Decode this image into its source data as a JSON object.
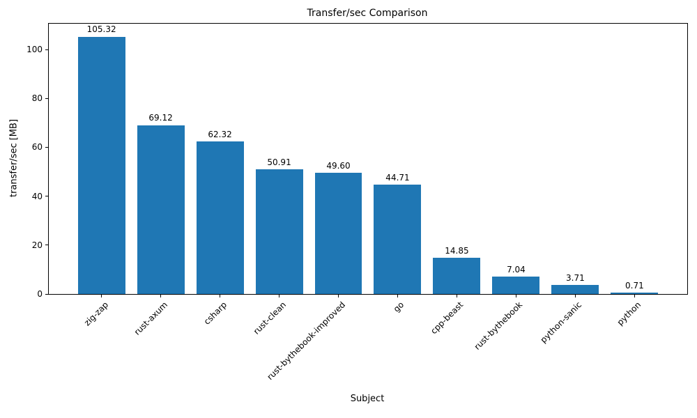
{
  "chart_data": {
    "type": "bar",
    "title": "Transfer/sec Comparison",
    "xlabel": "Subject",
    "ylabel": "transfer/sec [MB]",
    "categories": [
      "zig-zap",
      "rust-axum",
      "csharp",
      "rust-clean",
      "rust-bythebook-improved",
      "go",
      "cpp-beast",
      "rust-bythebook",
      "python-sanic",
      "python"
    ],
    "values": [
      105.32,
      69.12,
      62.32,
      50.91,
      49.6,
      44.71,
      14.85,
      7.04,
      3.71,
      0.71
    ],
    "value_labels": [
      "105.32",
      "69.12",
      "62.32",
      "50.91",
      "49.60",
      "44.71",
      "14.85",
      "7.04",
      "3.71",
      "0.71"
    ],
    "yticks": [
      0,
      20,
      40,
      60,
      80,
      100
    ],
    "ylim": [
      0,
      110.59
    ],
    "bar_width_fraction": 0.8,
    "bar_color": "#1f77b4",
    "spine_color": "#000000",
    "text_color": "#000000",
    "background_color": "#ffffff",
    "grid": false,
    "legend": "none",
    "x_tick_rotation_deg": 45
  }
}
